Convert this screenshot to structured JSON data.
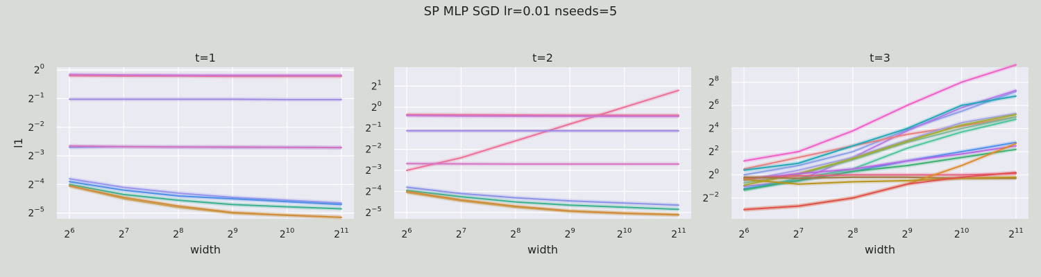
{
  "figure": {
    "suptitle": "SP MLP SGD lr=0.01 nseeds=5"
  },
  "chart_data": [
    {
      "type": "line",
      "title": "t=1",
      "xlabel": "width",
      "ylabel": "l1",
      "xscale": "log2",
      "yscale": "log2",
      "x": [
        64,
        128,
        256,
        512,
        1024,
        2048
      ],
      "xticks": [
        {
          "base": "2",
          "exp": "6"
        },
        {
          "base": "2",
          "exp": "7"
        },
        {
          "base": "2",
          "exp": "8"
        },
        {
          "base": "2",
          "exp": "9"
        },
        {
          "base": "2",
          "exp": "10"
        },
        {
          "base": "2",
          "exp": "11"
        }
      ],
      "yticks": [
        {
          "base": "2",
          "exp": "−5",
          "v": -5
        },
        {
          "base": "2",
          "exp": "−4",
          "v": -4
        },
        {
          "base": "2",
          "exp": "−3",
          "v": -3
        },
        {
          "base": "2",
          "exp": "−2",
          "v": -2
        },
        {
          "base": "2",
          "exp": "−1",
          "v": -1
        },
        {
          "base": "2",
          "exp": "0",
          "v": 0
        }
      ],
      "ylim_log2": [
        -5.2,
        0.1
      ],
      "grid": true,
      "series": [
        {
          "color": "#e96f8b",
          "log2_values": [
            -0.2,
            -0.21,
            -0.21,
            -0.22,
            -0.22,
            -0.22
          ]
        },
        {
          "color": "#c878d8",
          "log2_values": [
            -0.15,
            -0.17,
            -0.18,
            -0.18,
            -0.18,
            -0.18
          ]
        },
        {
          "color": "#9e86e0",
          "log2_values": [
            -1.02,
            -1.02,
            -1.02,
            -1.02,
            -1.03,
            -1.03
          ]
        },
        {
          "color": "#8a92e8",
          "log2_values": [
            -2.7,
            -2.68,
            -2.69,
            -2.7,
            -2.7,
            -2.71
          ]
        },
        {
          "color": "#d474c0",
          "log2_values": [
            -2.65,
            -2.68,
            -2.69,
            -2.69,
            -2.7,
            -2.71
          ]
        },
        {
          "color": "#9a96ec",
          "log2_values": [
            -3.8,
            -4.1,
            -4.3,
            -4.45,
            -4.55,
            -4.65
          ]
        },
        {
          "color": "#4c8ee8",
          "log2_values": [
            -3.9,
            -4.2,
            -4.4,
            -4.5,
            -4.6,
            -4.7
          ]
        },
        {
          "color": "#3bb08f",
          "log2_values": [
            -4.0,
            -4.35,
            -4.55,
            -4.7,
            -4.78,
            -4.85
          ]
        },
        {
          "color": "#c8a862",
          "log2_values": [
            -4.05,
            -4.5,
            -4.8,
            -5.0,
            -5.08,
            -5.15
          ]
        },
        {
          "color": "#d08c3a",
          "log2_values": [
            -4.05,
            -4.45,
            -4.75,
            -4.98,
            -5.07,
            -5.15
          ]
        }
      ]
    },
    {
      "type": "line",
      "title": "t=2",
      "xlabel": "width",
      "ylabel": "",
      "xscale": "log2",
      "yscale": "log2",
      "x": [
        64,
        128,
        256,
        512,
        1024,
        2048
      ],
      "xticks": [
        {
          "base": "2",
          "exp": "6"
        },
        {
          "base": "2",
          "exp": "7"
        },
        {
          "base": "2",
          "exp": "8"
        },
        {
          "base": "2",
          "exp": "9"
        },
        {
          "base": "2",
          "exp": "10"
        },
        {
          "base": "2",
          "exp": "11"
        }
      ],
      "yticks": [
        {
          "base": "2",
          "exp": "−5",
          "v": -5
        },
        {
          "base": "2",
          "exp": "−4",
          "v": -4
        },
        {
          "base": "2",
          "exp": "−3",
          "v": -3
        },
        {
          "base": "2",
          "exp": "−2",
          "v": -2
        },
        {
          "base": "2",
          "exp": "−1",
          "v": -1
        },
        {
          "base": "2",
          "exp": "0",
          "v": 0
        },
        {
          "base": "2",
          "exp": "1",
          "v": 1
        }
      ],
      "ylim_log2": [
        -5.3,
        1.9
      ],
      "grid": true,
      "series": [
        {
          "color": "#ee6e96",
          "log2_values": [
            -3.0,
            -2.4,
            -1.6,
            -0.8,
            0.0,
            0.8
          ]
        },
        {
          "color": "#e96f8b",
          "log2_values": [
            -0.35,
            -0.36,
            -0.37,
            -0.38,
            -0.38,
            -0.38
          ]
        },
        {
          "color": "#c878d8",
          "log2_values": [
            -0.4,
            -0.42,
            -0.43,
            -0.43,
            -0.44,
            -0.44
          ]
        },
        {
          "color": "#9e86e0",
          "log2_values": [
            -1.12,
            -1.12,
            -1.12,
            -1.12,
            -1.12,
            -1.12
          ]
        },
        {
          "color": "#d474c0",
          "log2_values": [
            -2.68,
            -2.69,
            -2.7,
            -2.7,
            -2.7,
            -2.7
          ]
        },
        {
          "color": "#8a92e8",
          "log2_values": [
            -3.8,
            -4.1,
            -4.3,
            -4.45,
            -4.55,
            -4.65
          ]
        },
        {
          "color": "#3bb08f",
          "log2_values": [
            -3.95,
            -4.25,
            -4.5,
            -4.65,
            -4.75,
            -4.85
          ]
        },
        {
          "color": "#c8a862",
          "log2_values": [
            -4.05,
            -4.45,
            -4.75,
            -4.95,
            -5.05,
            -5.12
          ]
        },
        {
          "color": "#d08c3a",
          "log2_values": [
            -4.0,
            -4.4,
            -4.7,
            -4.92,
            -5.03,
            -5.1
          ]
        }
      ]
    },
    {
      "type": "line",
      "title": "t=3",
      "xlabel": "width",
      "ylabel": "",
      "xscale": "log2",
      "yscale": "log2",
      "x": [
        64,
        128,
        256,
        512,
        1024,
        2048
      ],
      "xticks": [
        {
          "base": "2",
          "exp": "6"
        },
        {
          "base": "2",
          "exp": "7"
        },
        {
          "base": "2",
          "exp": "8"
        },
        {
          "base": "2",
          "exp": "9"
        },
        {
          "base": "2",
          "exp": "10"
        },
        {
          "base": "2",
          "exp": "11"
        }
      ],
      "yticks": [
        {
          "base": "2",
          "exp": "−2",
          "v": -2
        },
        {
          "base": "2",
          "exp": "0",
          "v": 0
        },
        {
          "base": "2",
          "exp": "2",
          "v": 2
        },
        {
          "base": "2",
          "exp": "4",
          "v": 4
        },
        {
          "base": "2",
          "exp": "6",
          "v": 6
        },
        {
          "base": "2",
          "exp": "8",
          "v": 8
        }
      ],
      "ylim_log2": [
        -3.8,
        9.3
      ],
      "grid": true,
      "series": [
        {
          "color": "#f060c8",
          "log2_values": [
            1.2,
            2.0,
            3.8,
            6.0,
            8.0,
            9.5
          ]
        },
        {
          "color": "#8aa0e8",
          "log2_values": [
            0.0,
            0.8,
            2.0,
            3.9,
            5.5,
            7.2
          ]
        },
        {
          "color": "#b878e8",
          "log2_values": [
            -1.0,
            -0.5,
            1.5,
            3.8,
            5.8,
            7.3
          ]
        },
        {
          "color": "#ea7f7f",
          "log2_values": [
            0.5,
            1.5,
            2.5,
            3.5,
            4.2,
            5.0
          ]
        },
        {
          "color": "#22a8b8",
          "log2_values": [
            0.4,
            1.0,
            2.5,
            4.0,
            6.0,
            6.8
          ]
        },
        {
          "color": "#a0a0e8",
          "log2_values": [
            -0.5,
            0.4,
            1.5,
            3.0,
            4.5,
            5.3
          ]
        },
        {
          "color": "#7cb89c",
          "log2_values": [
            -0.7,
            0.0,
            1.3,
            2.8,
            4.0,
            5.0
          ]
        },
        {
          "color": "#4cc69a",
          "log2_values": [
            -1.3,
            -0.3,
            0.5,
            2.3,
            3.7,
            4.8
          ]
        },
        {
          "color": "#a4ac2e",
          "log2_values": [
            -0.9,
            0.1,
            1.4,
            2.9,
            4.3,
            5.2
          ]
        },
        {
          "color": "#4a90f0",
          "log2_values": [
            -1.2,
            -0.5,
            0.3,
            1.2,
            2.0,
            2.8
          ]
        },
        {
          "color": "#b868e0",
          "log2_values": [
            -0.4,
            0.1,
            0.5,
            1.2,
            1.8,
            2.5
          ]
        },
        {
          "color": "#3cb070",
          "log2_values": [
            -1.3,
            -0.5,
            0.3,
            0.8,
            1.5,
            2.2
          ]
        },
        {
          "color": "#e86080",
          "log2_values": [
            -0.3,
            -0.1,
            0.0,
            0.0,
            0.0,
            0.1
          ]
        },
        {
          "color": "#a07840",
          "log2_values": [
            -0.2,
            -0.3,
            -0.2,
            -0.2,
            -0.3,
            -0.3
          ]
        },
        {
          "color": "#e08a2a",
          "log2_values": [
            -3.0,
            -2.7,
            -2.0,
            -0.8,
            0.8,
            2.7
          ]
        },
        {
          "color": "#b8941c",
          "log2_values": [
            -0.4,
            -0.8,
            -0.6,
            -0.5,
            -0.3,
            -0.2
          ]
        },
        {
          "color": "#e05050",
          "log2_values": [
            -3.0,
            -2.7,
            -2.0,
            -0.8,
            -0.2,
            0.2
          ]
        }
      ]
    }
  ]
}
